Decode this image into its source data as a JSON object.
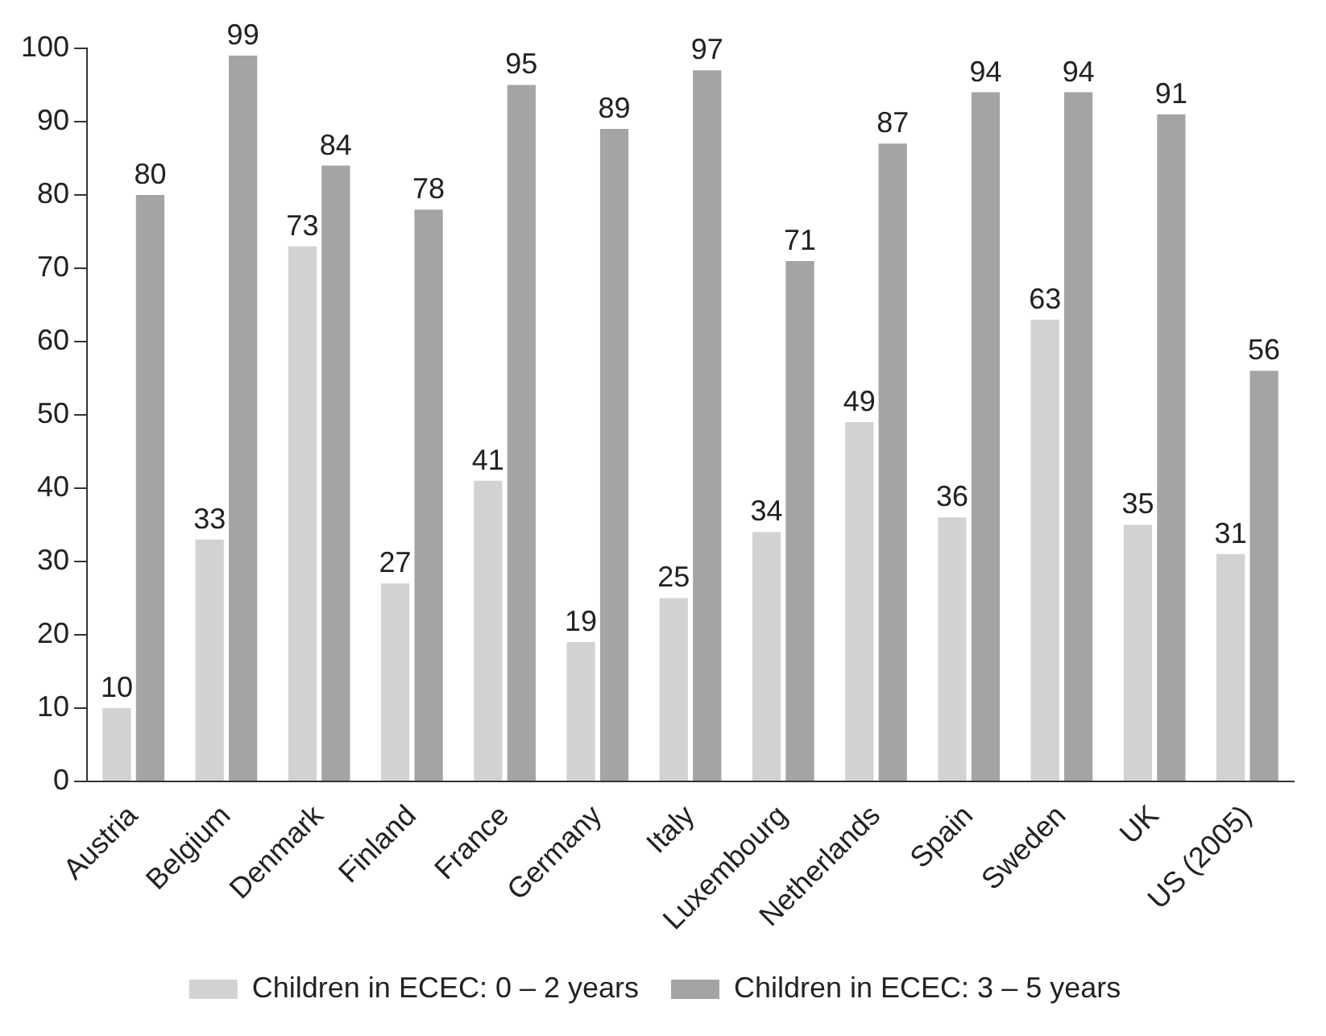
{
  "chart_data": {
    "type": "bar",
    "categories": [
      "Austria",
      "Belgium",
      "Denmark",
      "Finland",
      "France",
      "Germany",
      "Italy",
      "Luxembourg",
      "Netherlands",
      "Spain",
      "Sweden",
      "UK",
      "US (2005)"
    ],
    "series": [
      {
        "name": "Children in ECEC: 0 – 2 years",
        "color": "#d2d2d2",
        "values": [
          10,
          33,
          73,
          27,
          41,
          19,
          25,
          34,
          49,
          36,
          63,
          35,
          31
        ]
      },
      {
        "name": "Children in ECEC: 3 – 5 years",
        "color": "#a4a4a4",
        "values": [
          80,
          99,
          84,
          78,
          95,
          89,
          97,
          71,
          87,
          94,
          94,
          91,
          56
        ]
      }
    ],
    "ylim": [
      0,
      100
    ],
    "yticks": [
      0,
      10,
      20,
      30,
      40,
      50,
      60,
      70,
      80,
      90,
      100
    ],
    "grid": false,
    "legend": "bottom",
    "data_labels": true
  }
}
